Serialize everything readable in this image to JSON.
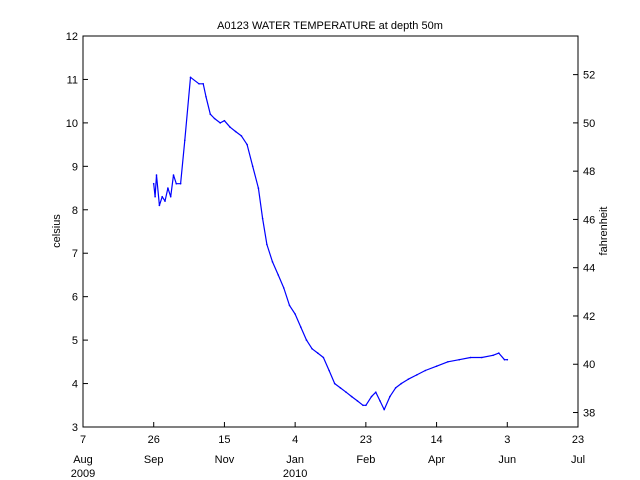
{
  "chart_data": {
    "type": "line",
    "title": "A0123 WATER TEMPERATURE at depth 50m",
    "ylabel": "celsius",
    "y2label": "fahrenheit",
    "xlabel": "",
    "ylim": [
      3,
      12
    ],
    "y2lim": [
      37.4,
      53.6
    ],
    "yticks": [
      3,
      4,
      5,
      6,
      7,
      8,
      9,
      10,
      11,
      12
    ],
    "y2ticks": [
      38,
      40,
      42,
      44,
      46,
      48,
      50,
      52
    ],
    "xlim": [
      "2009-08-07",
      "2010-07-23"
    ],
    "xticks": [
      {
        "date": "2009-08-07",
        "day": "7",
        "month": "Aug",
        "year": "2009"
      },
      {
        "date": "2009-09-26",
        "day": "26",
        "month": "Sep",
        "year": ""
      },
      {
        "date": "2009-11-15",
        "day": "15",
        "month": "Nov",
        "year": ""
      },
      {
        "date": "2010-01-04",
        "day": "4",
        "month": "Jan",
        "year": "2010"
      },
      {
        "date": "2010-02-23",
        "day": "23",
        "month": "Feb",
        "year": ""
      },
      {
        "date": "2010-04-14",
        "day": "14",
        "month": "Apr",
        "year": ""
      },
      {
        "date": "2010-06-03",
        "day": "3",
        "month": "Jun",
        "year": ""
      },
      {
        "date": "2010-07-23",
        "day": "23",
        "month": "Jul",
        "year": ""
      }
    ],
    "series": [
      {
        "color": "#0000ff",
        "points": [
          [
            "2009-09-26",
            8.6
          ],
          [
            "2009-09-27",
            8.3
          ],
          [
            "2009-09-28",
            8.8
          ],
          [
            "2009-09-30",
            8.1
          ],
          [
            "2009-10-02",
            8.3
          ],
          [
            "2009-10-04",
            8.2
          ],
          [
            "2009-10-06",
            8.5
          ],
          [
            "2009-10-08",
            8.3
          ],
          [
            "2009-10-10",
            8.8
          ],
          [
            "2009-10-12",
            8.6
          ],
          [
            "2009-10-15",
            8.6
          ],
          [
            "2009-10-18",
            9.6
          ],
          [
            "2009-10-22",
            11.05
          ],
          [
            "2009-10-28",
            10.9
          ],
          [
            "2009-10-31",
            10.9
          ],
          [
            "2009-11-02",
            10.6
          ],
          [
            "2009-11-05",
            10.2
          ],
          [
            "2009-11-08",
            10.1
          ],
          [
            "2009-11-12",
            10.0
          ],
          [
            "2009-11-15",
            10.05
          ],
          [
            "2009-11-19",
            9.9
          ],
          [
            "2009-11-23",
            9.8
          ],
          [
            "2009-11-27",
            9.7
          ],
          [
            "2009-12-01",
            9.5
          ],
          [
            "2009-12-05",
            9.0
          ],
          [
            "2009-12-09",
            8.5
          ],
          [
            "2009-12-12",
            7.8
          ],
          [
            "2009-12-15",
            7.2
          ],
          [
            "2009-12-19",
            6.8
          ],
          [
            "2009-12-23",
            6.5
          ],
          [
            "2009-12-27",
            6.2
          ],
          [
            "2009-12-31",
            5.8
          ],
          [
            "2010-01-04",
            5.6
          ],
          [
            "2010-01-08",
            5.3
          ],
          [
            "2010-01-12",
            5.0
          ],
          [
            "2010-01-16",
            4.8
          ],
          [
            "2010-01-20",
            4.7
          ],
          [
            "2010-01-24",
            4.6
          ],
          [
            "2010-01-28",
            4.3
          ],
          [
            "2010-02-01",
            4.0
          ],
          [
            "2010-02-05",
            3.9
          ],
          [
            "2010-02-09",
            3.8
          ],
          [
            "2010-02-13",
            3.7
          ],
          [
            "2010-02-17",
            3.6
          ],
          [
            "2010-02-21",
            3.5
          ],
          [
            "2010-02-23",
            3.5
          ],
          [
            "2010-02-27",
            3.7
          ],
          [
            "2010-03-02",
            3.8
          ],
          [
            "2010-03-05",
            3.6
          ],
          [
            "2010-03-08",
            3.4
          ],
          [
            "2010-03-12",
            3.7
          ],
          [
            "2010-03-16",
            3.9
          ],
          [
            "2010-03-20",
            4.0
          ],
          [
            "2010-03-25",
            4.1
          ],
          [
            "2010-03-31",
            4.2
          ],
          [
            "2010-04-06",
            4.3
          ],
          [
            "2010-04-14",
            4.4
          ],
          [
            "2010-04-22",
            4.5
          ],
          [
            "2010-04-30",
            4.55
          ],
          [
            "2010-05-08",
            4.6
          ],
          [
            "2010-05-16",
            4.6
          ],
          [
            "2010-05-24",
            4.65
          ],
          [
            "2010-05-28",
            4.7
          ],
          [
            "2010-06-01",
            4.55
          ],
          [
            "2010-06-03",
            4.55
          ]
        ]
      }
    ]
  }
}
